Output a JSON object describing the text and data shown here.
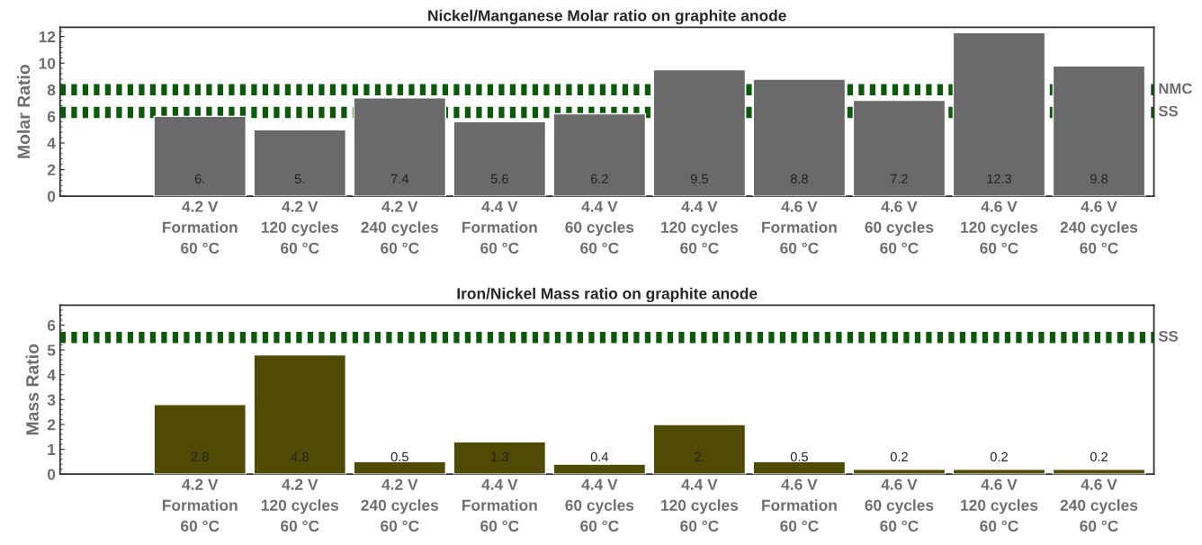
{
  "chart_data": [
    {
      "type": "bar",
      "title": "Nickel/Manganese Molar ratio on graphite anode",
      "ylabel": "Molar Ratio",
      "categories": [
        "4.2 V\nFormation\n60 °C",
        "4.2 V\n120 cycles\n60 °C",
        "4.2 V\n240 cycles\n60 °C",
        "4.4 V\nFormation\n60 °C",
        "4.4 V\n60 cycles\n60 °C",
        "4.4 V\n120 cycles\n60 °C",
        "4.6 V\nFormation\n60 °C",
        "4.6 V\n60 cycles\n60 °C",
        "4.6 V\n120 cycles\n60 °C",
        "4.6 V\n240 cycles\n60 °C"
      ],
      "values": [
        6.0,
        5.0,
        7.4,
        5.6,
        6.2,
        9.5,
        8.8,
        7.2,
        12.3,
        9.8
      ],
      "value_labels": [
        "6.",
        "5.",
        "7.4",
        "5.6",
        "6.2",
        "9.5",
        "8.8",
        "7.2",
        "12.3",
        "9.8"
      ],
      "color": "#6a6a6a",
      "ylim": [
        0,
        12.7
      ],
      "yticks": [
        0,
        2,
        4,
        6,
        8,
        10,
        12
      ],
      "ref_lines": [
        {
          "axis": "y",
          "value": 8.0,
          "label": "NMC",
          "color": "#0a5a0a",
          "line_style": "dotted"
        },
        {
          "axis": "y",
          "value": 6.3,
          "label": "SS",
          "color": "#0a5a0a",
          "line_style": "dotted"
        }
      ]
    },
    {
      "type": "bar",
      "title": "Iron/Nickel Mass ratio on graphite anode",
      "ylabel": "Mass Ratio",
      "categories": [
        "4.2 V\nFormation\n60 °C",
        "4.2 V\n120 cycles\n60 °C",
        "4.2 V\n240 cycles\n60 °C",
        "4.4 V\nFormation\n60 °C",
        "4.4 V\n60 cycles\n60 °C",
        "4.4 V\n120 cycles\n60 °C",
        "4.6 V\nFormation\n60 °C",
        "4.6 V\n60 cycles\n60 °C",
        "4.6 V\n120 cycles\n60 °C",
        "4.6 V\n240 cycles\n60 °C"
      ],
      "values": [
        2.8,
        4.8,
        0.5,
        1.3,
        0.4,
        2.0,
        0.5,
        0.2,
        0.2,
        0.2
      ],
      "value_labels": [
        "2.8",
        "4.8",
        "0.5",
        "1.3",
        "0.4",
        "2.",
        "0.5",
        "0.2",
        "0.2",
        "0.2"
      ],
      "color": "#4f4b05",
      "ylim": [
        0,
        6.8
      ],
      "yticks": [
        0,
        1,
        2,
        3,
        4,
        5,
        6
      ],
      "ref_lines": [
        {
          "axis": "y",
          "value": 5.5,
          "label": "SS",
          "color": "#0a5a0a",
          "line_style": "dotted"
        }
      ]
    }
  ]
}
